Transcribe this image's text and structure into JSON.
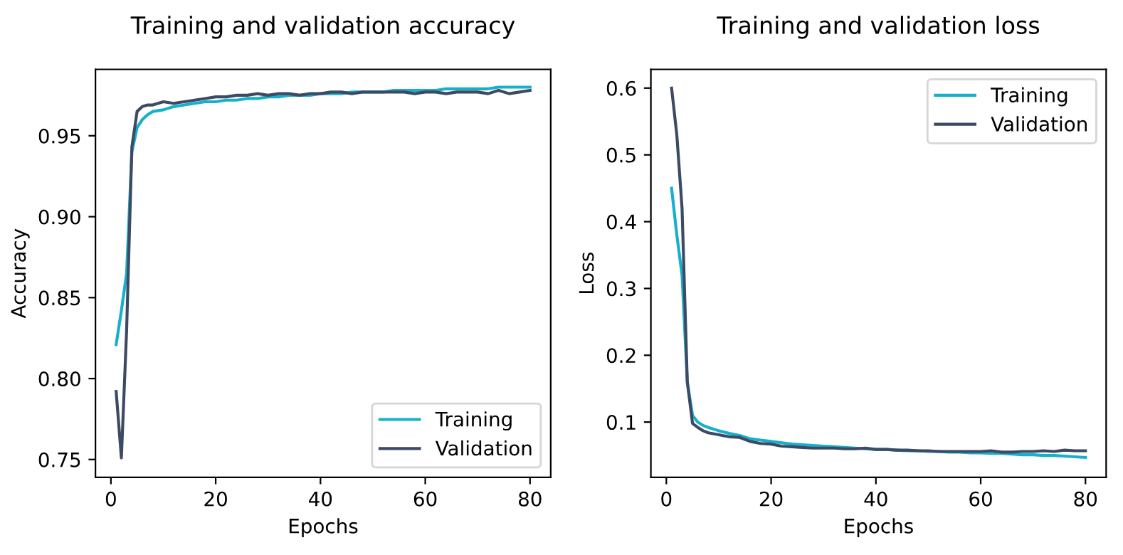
{
  "chart_data": [
    {
      "type": "line",
      "title": "Training and validation accuracy",
      "xlabel": "Epochs",
      "ylabel": "Accuracy",
      "x": [
        1,
        2,
        3,
        4,
        5,
        6,
        7,
        8,
        10,
        12,
        14,
        16,
        18,
        20,
        22,
        24,
        26,
        28,
        30,
        32,
        34,
        36,
        38,
        40,
        42,
        44,
        46,
        48,
        50,
        52,
        54,
        56,
        58,
        60,
        62,
        64,
        66,
        68,
        70,
        72,
        74,
        76,
        78,
        80
      ],
      "series": [
        {
          "name": "Training",
          "color": "#17b0cc",
          "values": [
            0.821,
            0.842,
            0.865,
            0.94,
            0.955,
            0.96,
            0.963,
            0.965,
            0.966,
            0.968,
            0.969,
            0.97,
            0.971,
            0.971,
            0.972,
            0.972,
            0.973,
            0.973,
            0.974,
            0.974,
            0.975,
            0.975,
            0.975,
            0.976,
            0.976,
            0.976,
            0.977,
            0.977,
            0.977,
            0.977,
            0.978,
            0.978,
            0.978,
            0.978,
            0.978,
            0.979,
            0.979,
            0.979,
            0.979,
            0.979,
            0.98,
            0.98,
            0.98,
            0.98
          ]
        },
        {
          "name": "Validation",
          "color": "#3d4a63",
          "values": [
            0.792,
            0.751,
            0.83,
            0.943,
            0.965,
            0.968,
            0.969,
            0.969,
            0.971,
            0.97,
            0.971,
            0.972,
            0.973,
            0.974,
            0.974,
            0.975,
            0.975,
            0.976,
            0.975,
            0.976,
            0.976,
            0.975,
            0.976,
            0.976,
            0.977,
            0.977,
            0.976,
            0.977,
            0.977,
            0.977,
            0.977,
            0.977,
            0.976,
            0.977,
            0.977,
            0.976,
            0.977,
            0.977,
            0.977,
            0.976,
            0.978,
            0.976,
            0.977,
            0.978
          ]
        }
      ],
      "xlim": [
        -2.95,
        83.95
      ],
      "xticks": [
        0,
        20,
        40,
        60,
        80
      ],
      "ylim": [
        0.739,
        0.991
      ],
      "yticks": [
        0.75,
        {
          "value": 0.8,
          "label": "0.80"
        },
        0.85,
        {
          "value": 0.9,
          "label": "0.90"
        },
        0.95
      ],
      "legend": "lower right",
      "grid": false
    },
    {
      "type": "line",
      "title": "Training and validation loss",
      "xlabel": "Epochs",
      "ylabel": "Loss",
      "x": [
        1,
        2,
        3,
        4,
        5,
        6,
        7,
        8,
        10,
        12,
        14,
        16,
        18,
        20,
        22,
        24,
        26,
        28,
        30,
        32,
        34,
        36,
        38,
        40,
        42,
        44,
        46,
        48,
        50,
        52,
        54,
        56,
        58,
        60,
        62,
        64,
        66,
        68,
        70,
        72,
        74,
        76,
        78,
        80
      ],
      "series": [
        {
          "name": "Training",
          "color": "#17b0cc",
          "values": [
            0.45,
            0.38,
            0.32,
            0.16,
            0.11,
            0.1,
            0.095,
            0.092,
            0.087,
            0.083,
            0.08,
            0.075,
            0.073,
            0.071,
            0.069,
            0.067,
            0.066,
            0.065,
            0.064,
            0.063,
            0.062,
            0.061,
            0.06,
            0.059,
            0.059,
            0.058,
            0.057,
            0.057,
            0.056,
            0.056,
            0.055,
            0.055,
            0.054,
            0.054,
            0.053,
            0.053,
            0.052,
            0.051,
            0.051,
            0.05,
            0.05,
            0.049,
            0.048,
            0.047
          ]
        },
        {
          "name": "Validation",
          "color": "#3d4a63",
          "values": [
            0.6,
            0.53,
            0.42,
            0.16,
            0.098,
            0.092,
            0.087,
            0.084,
            0.081,
            0.078,
            0.077,
            0.071,
            0.068,
            0.067,
            0.064,
            0.063,
            0.062,
            0.061,
            0.061,
            0.061,
            0.06,
            0.06,
            0.061,
            0.059,
            0.059,
            0.058,
            0.058,
            0.057,
            0.057,
            0.056,
            0.056,
            0.056,
            0.056,
            0.056,
            0.057,
            0.055,
            0.055,
            0.056,
            0.056,
            0.057,
            0.056,
            0.058,
            0.057,
            0.057
          ]
        }
      ],
      "xlim": [
        -2.95,
        83.95
      ],
      "xticks": [
        0,
        20,
        40,
        60,
        80
      ],
      "ylim": [
        0.0173,
        0.628
      ],
      "yticks": [
        0.1,
        0.2,
        0.3,
        0.4,
        0.5,
        0.6
      ],
      "legend": "upper right",
      "grid": false
    }
  ]
}
